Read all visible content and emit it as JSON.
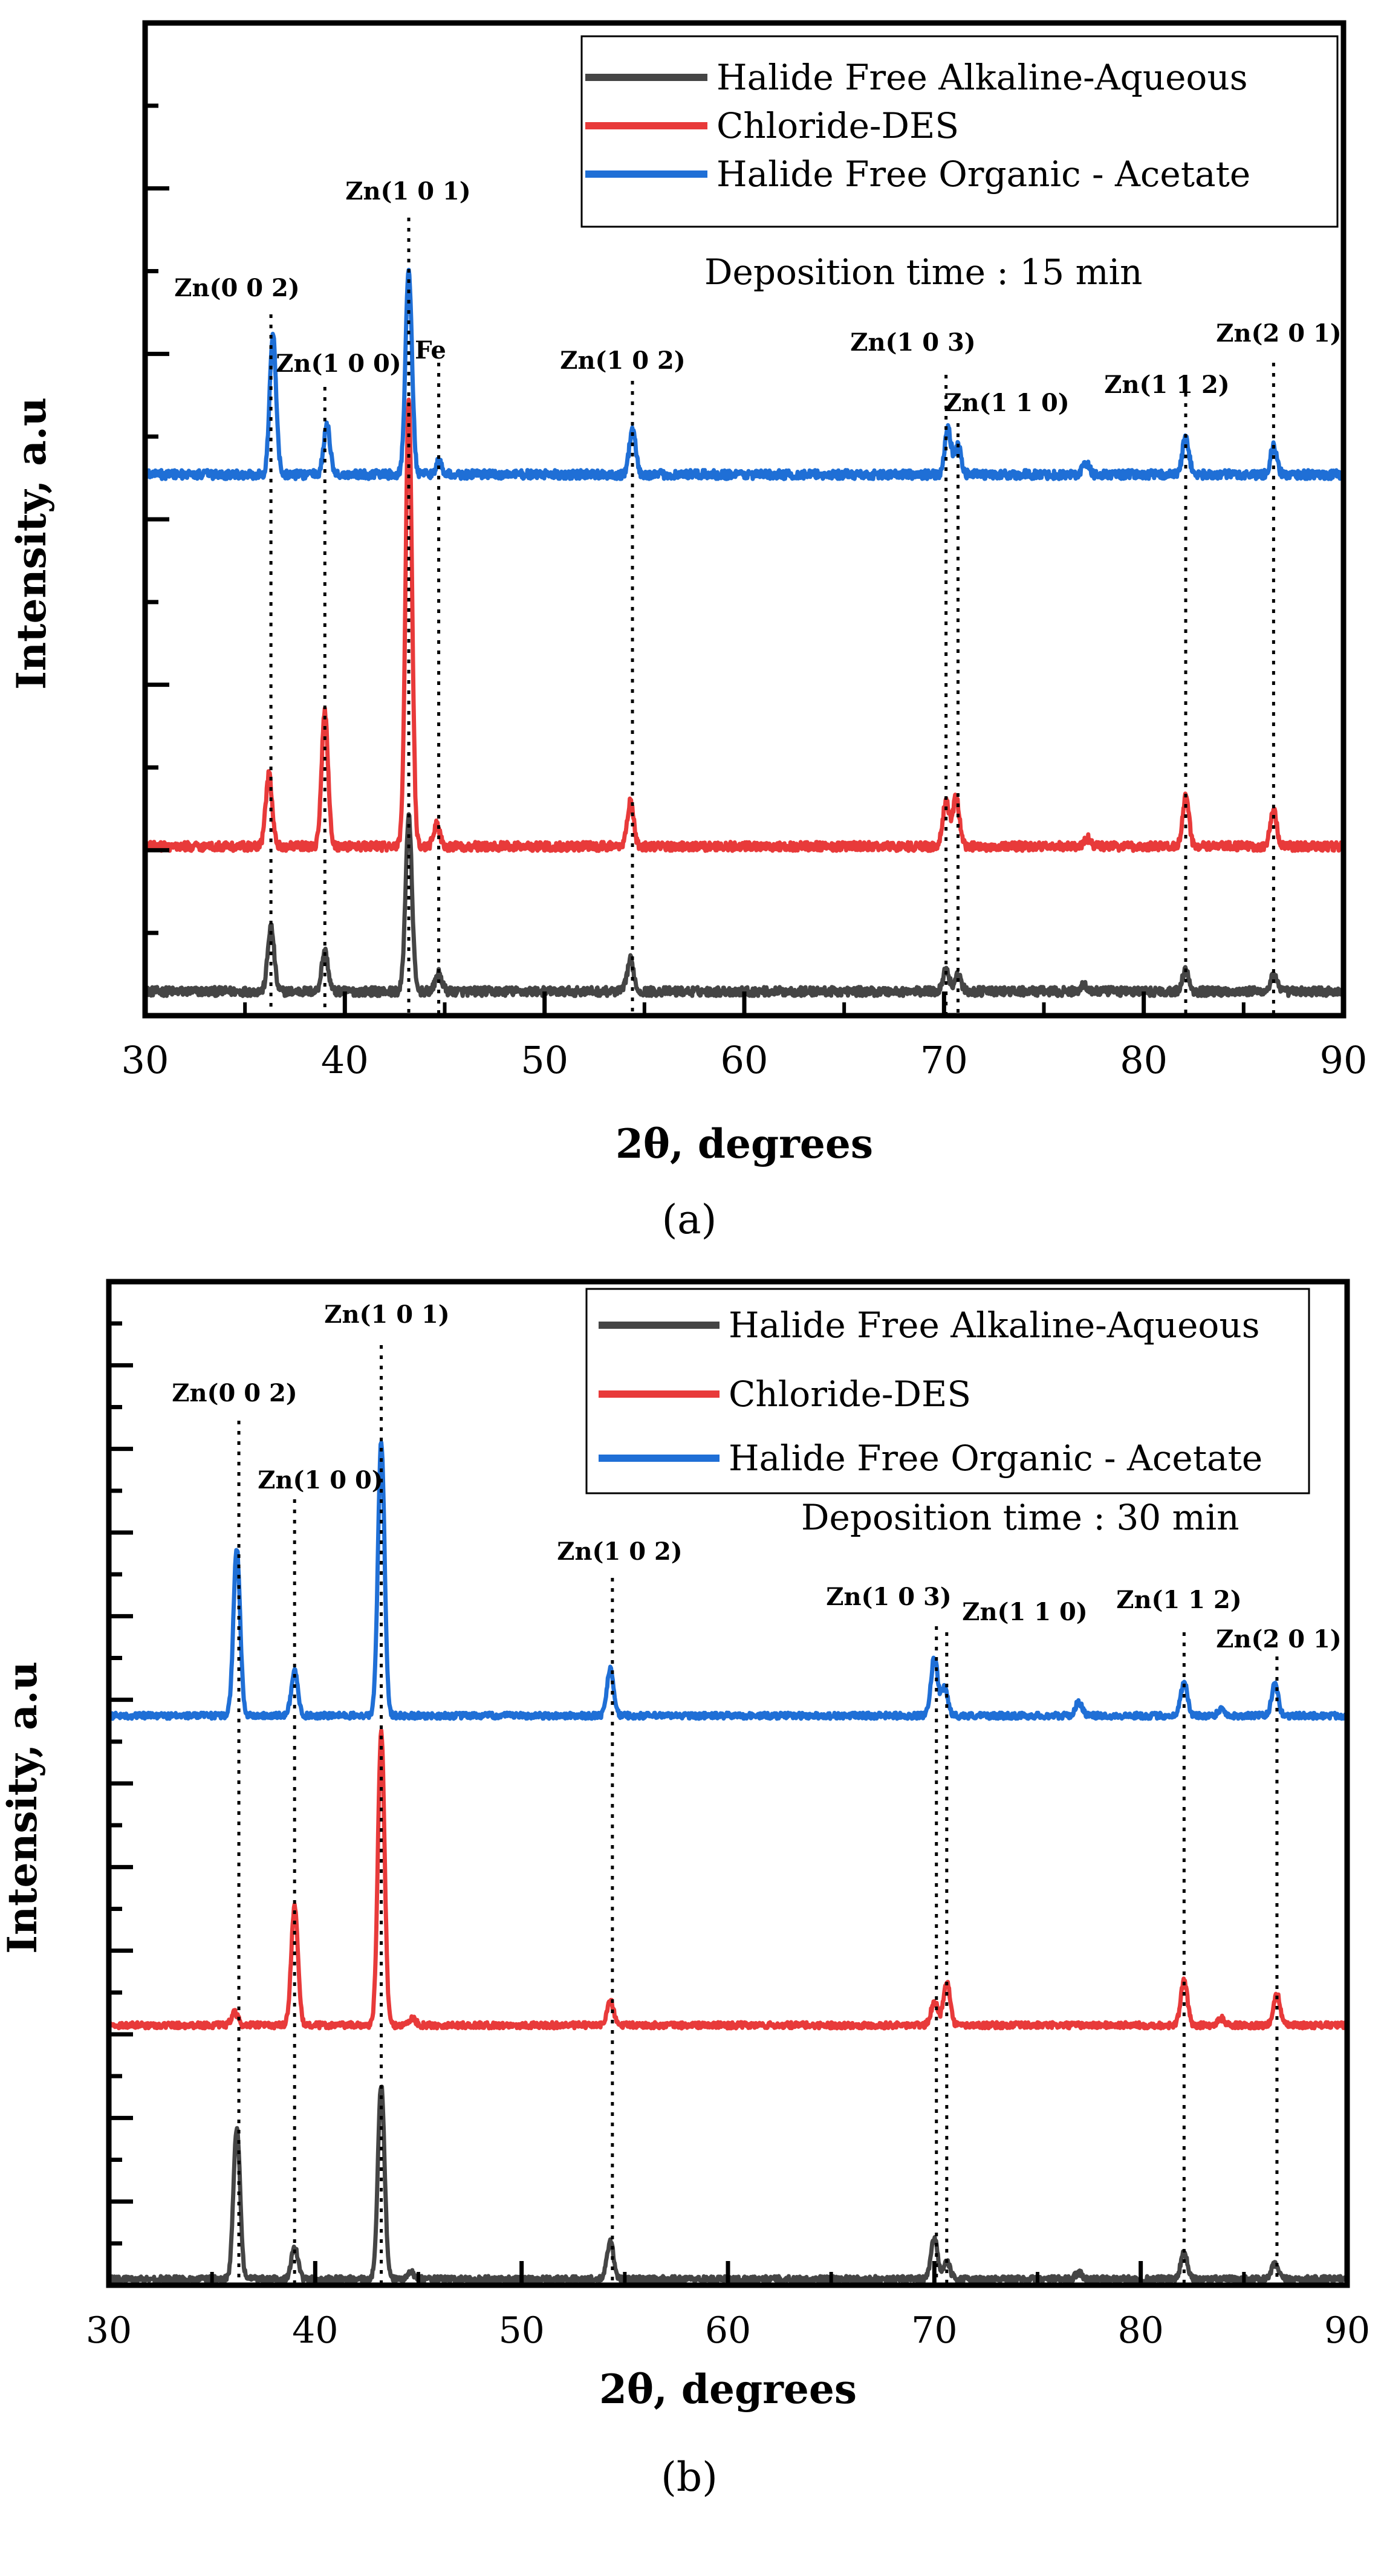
{
  "chart_data": [
    {
      "type": "line",
      "panel_label": "(a)",
      "xlabel": "2θ, degrees",
      "ylabel": "Intensity, a.u",
      "xlim": [
        30,
        90
      ],
      "xticks": [
        30,
        40,
        50,
        60,
        70,
        80,
        90
      ],
      "grid": false,
      "legend_position": "top-right",
      "annotation_text": "Deposition time : 15 min",
      "series": [
        {
          "name": "Halide Free Alkaline-Aqueous",
          "color": "#454545",
          "baseline": 0.4,
          "peaks": [
            [
              36.3,
              6.5
            ],
            [
              39.0,
              4.0
            ],
            [
              43.2,
              17.5
            ],
            [
              44.7,
              1.8
            ],
            [
              54.3,
              3.2
            ],
            [
              70.1,
              2.2
            ],
            [
              70.7,
              1.6
            ],
            [
              77.0,
              0.7
            ],
            [
              82.1,
              2.2
            ],
            [
              86.5,
              1.6
            ]
          ]
        },
        {
          "name": "Chloride-DES",
          "color": "#e83a3a",
          "baseline": 18.0,
          "peaks": [
            [
              36.2,
              7.2
            ],
            [
              39.0,
              13.5
            ],
            [
              43.2,
              45.0
            ],
            [
              44.6,
              2.2
            ],
            [
              54.3,
              4.5
            ],
            [
              70.1,
              4.5
            ],
            [
              70.6,
              5.0
            ],
            [
              77.2,
              0.8
            ],
            [
              82.1,
              5.0
            ],
            [
              86.5,
              3.6
            ]
          ]
        },
        {
          "name": "Halide Free Organic - Acetate",
          "color": "#1f6fd6",
          "baseline": 63.0,
          "peaks": [
            [
              36.4,
              14.0
            ],
            [
              39.1,
              5.0
            ],
            [
              43.2,
              20.5
            ],
            [
              44.7,
              1.2
            ],
            [
              54.4,
              4.5
            ],
            [
              70.2,
              4.5
            ],
            [
              70.7,
              2.8
            ],
            [
              77.1,
              1.2
            ],
            [
              82.1,
              3.8
            ],
            [
              86.5,
              2.8
            ]
          ]
        }
      ],
      "reflections": [
        {
          "label": "Zn(0 0 2)",
          "x": 36.3
        },
        {
          "label": "Zn(1 0 0)",
          "x": 39.0
        },
        {
          "label": "Zn(1 0 1)",
          "x": 43.2
        },
        {
          "label": "Fe",
          "x": 44.7
        },
        {
          "label": "Zn(1 0 2)",
          "x": 54.4
        },
        {
          "label": "Zn(1 0 3)",
          "x": 70.1
        },
        {
          "label": "Zn(1 1 0)",
          "x": 70.7
        },
        {
          "label": "Zn(1 1 2)",
          "x": 82.1
        },
        {
          "label": "Zn(2 0 1)",
          "x": 86.5
        }
      ]
    },
    {
      "type": "line",
      "panel_label": "(b)",
      "xlabel": "2θ, degrees",
      "ylabel": "Intensity, a.u",
      "xlim": [
        30,
        90
      ],
      "xticks": [
        30,
        40,
        50,
        60,
        70,
        80,
        90
      ],
      "grid": false,
      "legend_position": "top-right",
      "annotation_text": "Deposition time : 30 min",
      "series": [
        {
          "name": "Halide Free Alkaline-Aqueous",
          "color": "#454545",
          "baseline": 0.5,
          "peaks": [
            [
              36.2,
              22.0
            ],
            [
              39.0,
              4.8
            ],
            [
              43.2,
              28.5
            ],
            [
              44.6,
              1.2
            ],
            [
              54.3,
              5.5
            ],
            [
              70.0,
              6.0
            ],
            [
              70.6,
              2.5
            ],
            [
              77.0,
              1.0
            ],
            [
              82.1,
              3.8
            ],
            [
              86.5,
              2.2
            ]
          ]
        },
        {
          "name": "Chloride-DES",
          "color": "#e83a3a",
          "baseline": 33.0,
          "peaks": [
            [
              36.1,
              1.8
            ],
            [
              39.0,
              17.5
            ],
            [
              43.2,
              43.0
            ],
            [
              44.7,
              1.0
            ],
            [
              54.3,
              3.5
            ],
            [
              70.0,
              3.5
            ],
            [
              70.6,
              6.5
            ],
            [
              82.1,
              6.5
            ],
            [
              83.9,
              1.0
            ],
            [
              86.6,
              4.5
            ]
          ]
        },
        {
          "name": "Halide Free Organic - Acetate",
          "color": "#1f6fd6",
          "baseline": 70.0,
          "peaks": [
            [
              36.2,
              24.5
            ],
            [
              39.0,
              6.5
            ],
            [
              43.2,
              40.0
            ],
            [
              54.3,
              7.0
            ],
            [
              70.0,
              8.5
            ],
            [
              70.5,
              4.0
            ],
            [
              77.0,
              2.0
            ],
            [
              82.1,
              5.0
            ],
            [
              83.9,
              1.0
            ],
            [
              86.5,
              4.5
            ]
          ]
        }
      ],
      "reflections": [
        {
          "label": "Zn(0 0 2)",
          "x": 36.3
        },
        {
          "label": "Zn(1 0 0)",
          "x": 39.0
        },
        {
          "label": "Zn(1 0 1)",
          "x": 43.2
        },
        {
          "label": "Zn(1 0 2)",
          "x": 54.4
        },
        {
          "label": "Zn(1 0 3)",
          "x": 70.1
        },
        {
          "label": "Zn(1 1 0)",
          "x": 70.6
        },
        {
          "label": "Zn(1 1 2)",
          "x": 82.1
        },
        {
          "label": "Zn(2 0 1)",
          "x": 86.6
        }
      ]
    }
  ]
}
